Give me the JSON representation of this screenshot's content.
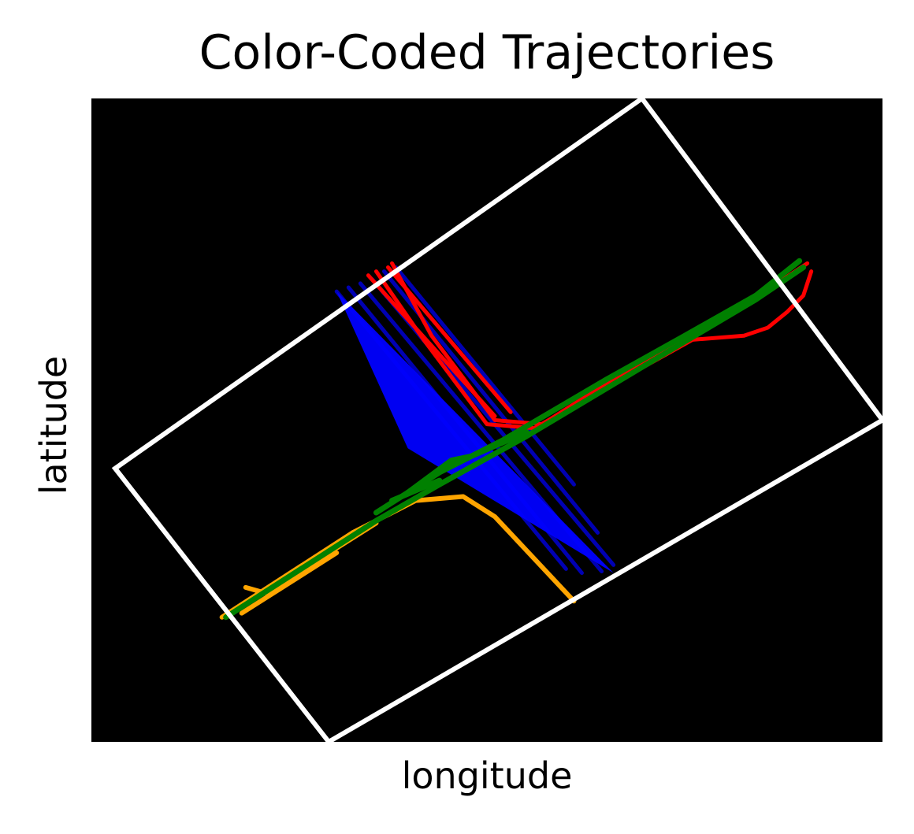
{
  "chart_data": {
    "type": "line",
    "title": "Color-Coded Trajectories",
    "xlabel": "longitude",
    "ylabel": "latitude",
    "grid": false,
    "legend": "none",
    "background": "#000000",
    "boundary_color": "#ffffff",
    "boundary": [
      [
        0.3,
        3.4
      ],
      [
        3.0,
        0.0
      ],
      [
        10.0,
        4.0
      ],
      [
        6.96,
        8.0
      ]
    ],
    "series": [
      {
        "color": "#0000ff",
        "bundle": [
          [
            3.1,
            5.6
          ],
          [
            4.0,
            3.65
          ],
          [
            6.6,
            2.1
          ]
        ],
        "paths": [
          [
            [
              3.1,
              5.6
            ],
            [
              6.0,
              2.15
            ]
          ],
          [
            [
              3.25,
              5.65
            ],
            [
              6.2,
              2.1
            ]
          ],
          [
            [
              3.4,
              5.7
            ],
            [
              6.45,
              2.12
            ]
          ],
          [
            [
              3.55,
              5.75
            ],
            [
              6.6,
              2.2
            ]
          ],
          [
            [
              3.7,
              5.85
            ],
            [
              6.4,
              2.6
            ]
          ],
          [
            [
              3.85,
              5.9
            ],
            [
              6.1,
              3.2
            ]
          ]
        ]
      },
      {
        "color": "#ff0000",
        "paths": [
          [
            [
              3.8,
              5.95
            ],
            [
              4.3,
              5.05
            ],
            [
              5.1,
              4.0
            ],
            [
              5.7,
              3.95
            ],
            [
              6.5,
              4.45
            ],
            [
              7.9,
              5.2
            ],
            [
              9.05,
              5.95
            ]
          ],
          [
            [
              3.6,
              5.85
            ],
            [
              4.2,
              5.0
            ],
            [
              5.0,
              3.95
            ],
            [
              5.6,
              3.9
            ],
            [
              6.5,
              4.4
            ],
            [
              7.6,
              5.0
            ],
            [
              8.25,
              5.05
            ],
            [
              8.55,
              5.15
            ],
            [
              8.8,
              5.35
            ],
            [
              9.0,
              5.55
            ],
            [
              9.1,
              5.85
            ]
          ],
          [
            [
              3.75,
              5.9
            ],
            [
              5.3,
              4.1
            ]
          ],
          [
            [
              3.5,
              5.8
            ],
            [
              5.1,
              4.05
            ]
          ]
        ]
      },
      {
        "color": "#ffa500",
        "paths": [
          [
            [
              1.65,
              1.55
            ],
            [
              3.3,
              2.6
            ],
            [
              4.1,
              3.0
            ],
            [
              4.7,
              3.05
            ],
            [
              5.1,
              2.8
            ],
            [
              6.1,
              1.75
            ]
          ],
          [
            [
              1.95,
              1.92
            ],
            [
              2.2,
              1.85
            ],
            [
              3.6,
              2.72
            ]
          ],
          [
            [
              1.9,
              1.6
            ],
            [
              3.1,
              2.35
            ]
          ]
        ]
      },
      {
        "color": "#008000",
        "paths": [
          [
            [
              1.7,
              1.55
            ],
            [
              3.6,
              2.75
            ],
            [
              4.4,
              3.2
            ],
            [
              5.5,
              3.8
            ],
            [
              7.2,
              4.8
            ],
            [
              8.4,
              5.5
            ],
            [
              9.0,
              5.9
            ]
          ],
          [
            [
              3.6,
              2.85
            ],
            [
              4.4,
              3.35
            ],
            [
              5.2,
              3.75
            ],
            [
              6.5,
              4.5
            ],
            [
              7.5,
              5.05
            ],
            [
              8.4,
              5.55
            ],
            [
              8.95,
              5.98
            ]
          ],
          [
            [
              4.0,
              3.1
            ],
            [
              4.55,
              3.5
            ],
            [
              4.8,
              3.55
            ],
            [
              5.5,
              3.85
            ]
          ],
          [
            [
              3.8,
              3.0
            ],
            [
              4.4,
              3.25
            ]
          ]
        ]
      }
    ]
  }
}
